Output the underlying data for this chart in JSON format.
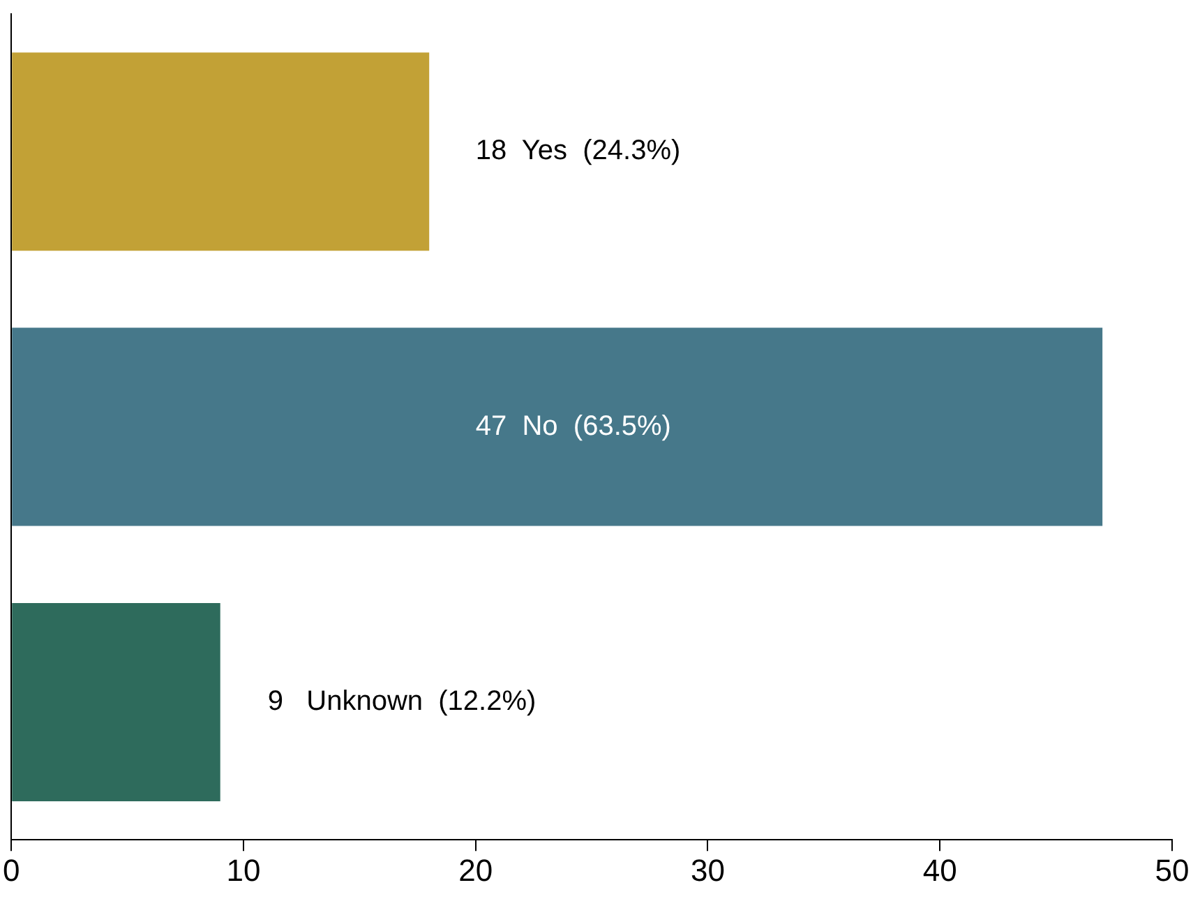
{
  "chart_data": {
    "type": "bar",
    "orientation": "horizontal",
    "categories": [
      null,
      null,
      null
    ],
    "values": [
      18,
      47,
      9
    ],
    "colors": [
      "#c2a136",
      "#46788a",
      "#2e6b5c"
    ],
    "value_labels": [
      "18  Yes  (24.3%)",
      "47  No  (63.5%)",
      "9   Unknown  (12.2%)"
    ],
    "xlim": [
      0,
      50
    ],
    "xticks": [
      0,
      10,
      20,
      30,
      40,
      50
    ],
    "grid": false,
    "legend": false
  }
}
